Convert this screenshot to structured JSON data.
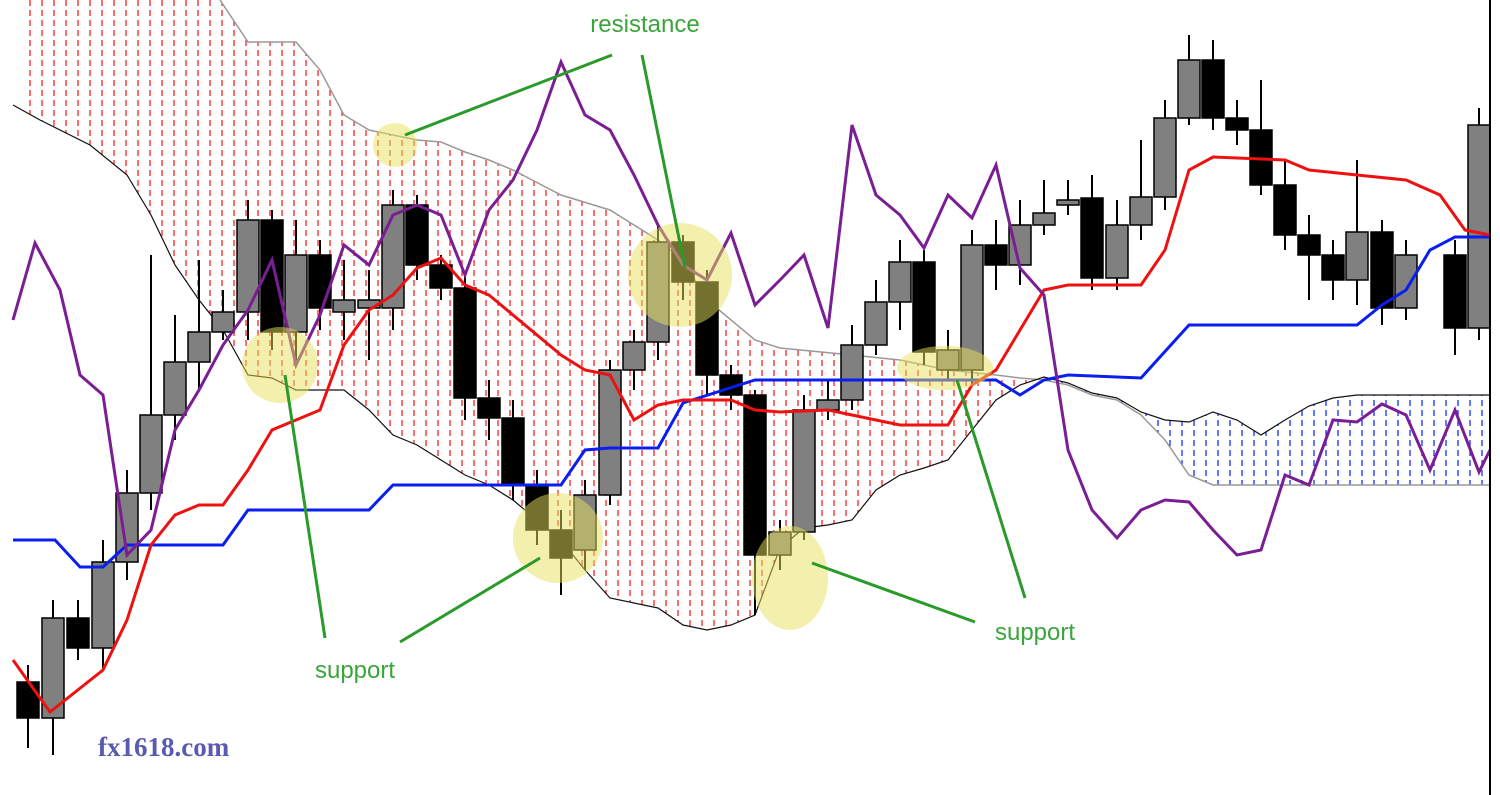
{
  "annotations": [
    "resistance",
    "support",
    "support"
  ],
  "watermark": "fx1618.com"
}
